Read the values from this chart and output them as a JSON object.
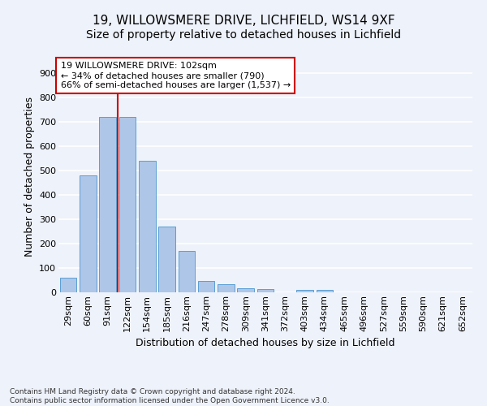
{
  "title1": "19, WILLOWSMERE DRIVE, LICHFIELD, WS14 9XF",
  "title2": "Size of property relative to detached houses in Lichfield",
  "xlabel": "Distribution of detached houses by size in Lichfield",
  "ylabel": "Number of detached properties",
  "footnote": "Contains HM Land Registry data © Crown copyright and database right 2024.\nContains public sector information licensed under the Open Government Licence v3.0.",
  "categories": [
    "29sqm",
    "60sqm",
    "91sqm",
    "122sqm",
    "154sqm",
    "185sqm",
    "216sqm",
    "247sqm",
    "278sqm",
    "309sqm",
    "341sqm",
    "372sqm",
    "403sqm",
    "434sqm",
    "465sqm",
    "496sqm",
    "527sqm",
    "559sqm",
    "590sqm",
    "621sqm",
    "652sqm"
  ],
  "values": [
    60,
    480,
    720,
    720,
    540,
    270,
    170,
    46,
    35,
    17,
    14,
    0,
    9,
    9,
    0,
    0,
    0,
    0,
    0,
    0,
    0
  ],
  "bar_color": "#aec6e8",
  "bar_edge_color": "#5a9fd4",
  "vline_x_index": 2,
  "vline_color": "#cc0000",
  "annotation_text": "19 WILLOWSMERE DRIVE: 102sqm\n← 34% of detached houses are smaller (790)\n66% of semi-detached houses are larger (1,537) →",
  "annotation_box_color": "#ffffff",
  "annotation_box_edge": "#cc0000",
  "ylim": [
    0,
    950
  ],
  "yticks": [
    0,
    100,
    200,
    300,
    400,
    500,
    600,
    700,
    800,
    900
  ],
  "background_color": "#eef2fa",
  "grid_color": "#ffffff",
  "title1_fontsize": 11,
  "title2_fontsize": 10,
  "axis_label_fontsize": 9,
  "tick_fontsize": 8,
  "annotation_fontsize": 8,
  "footnote_fontsize": 6.5
}
